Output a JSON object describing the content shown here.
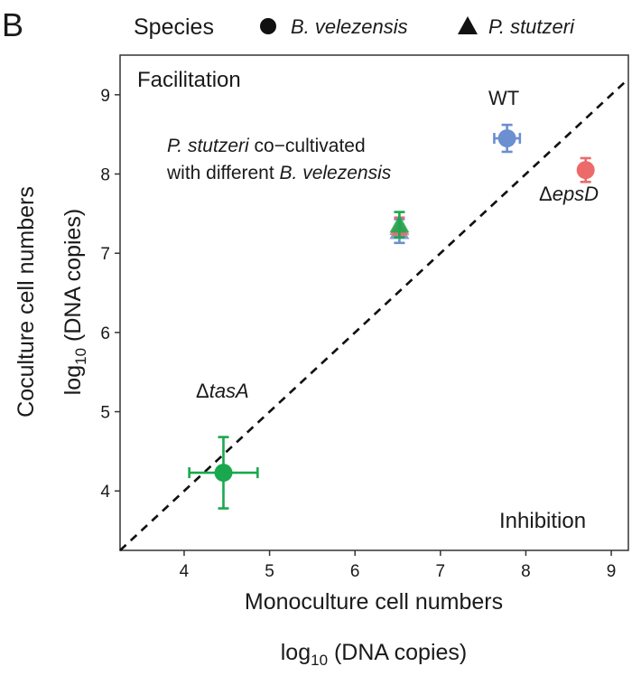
{
  "panel_label": "B",
  "legend": {
    "title": "Species",
    "entries": [
      {
        "label": "B. velezensis",
        "shape": "circle"
      },
      {
        "label": "P. stutzeri",
        "shape": "triangle"
      }
    ]
  },
  "chart_data": {
    "type": "scatter",
    "xlabel_line1": "Monoculture cell numbers",
    "xlabel_line2_prefix": "log",
    "xlabel_line2_sub": "10",
    "xlabel_line2_suffix": " (DNA copies)",
    "ylabel_line1": "Coculture cell numbers",
    "ylabel_line2_prefix": "log",
    "ylabel_line2_sub": "10",
    "ylabel_line2_suffix": " (DNA copies)",
    "xlim": [
      3.25,
      9.2
    ],
    "ylim": [
      3.25,
      9.5
    ],
    "xticks": [
      4,
      5,
      6,
      7,
      8,
      9
    ],
    "yticks": [
      4,
      5,
      6,
      7,
      8,
      9
    ],
    "grid": false,
    "reference_line": {
      "slope": 1,
      "intercept": 0,
      "style": "dashed"
    },
    "points": [
      {
        "label": "WT",
        "species": "B. velezensis",
        "shape": "circle",
        "color": "#6b8fd0",
        "x": 7.78,
        "y": 8.45,
        "xerr": 0.15,
        "yerr": 0.17
      },
      {
        "label": "ΔepsD",
        "species": "B. velezensis",
        "shape": "circle",
        "color": "#ec6a6a",
        "x": 8.7,
        "y": 8.05,
        "xerr": 0.07,
        "yerr": 0.15
      },
      {
        "label": "ΔtasA",
        "species": "B. velezensis",
        "shape": "circle",
        "color": "#1aa84e",
        "x": 4.46,
        "y": 4.23,
        "xerr": 0.4,
        "yerr": 0.45
      },
      {
        "label": "",
        "species": "P. stutzeri",
        "shape": "triangle",
        "color": "#6b8fd0",
        "x": 6.52,
        "y": 7.28,
        "xerr": 0,
        "yerr": 0.15
      },
      {
        "label": "",
        "species": "P. stutzeri",
        "shape": "triangle",
        "color": "#ec6a6a",
        "x": 6.52,
        "y": 7.33,
        "xerr": 0,
        "yerr": 0.12
      },
      {
        "label": "",
        "species": "P. stutzeri",
        "shape": "triangle",
        "color": "#1aa84e",
        "x": 6.52,
        "y": 7.36,
        "xerr": 0,
        "yerr": 0.16
      }
    ],
    "annotations": {
      "facilitation": "Facilitation",
      "inhibition": "Inhibition",
      "wt": "WT",
      "epsd_delta": "Δ",
      "epsd_name": "epsD",
      "tasa_delta": "Δ",
      "tasa_name": "tasA",
      "note_line1_italic": "P. stutzeri",
      "note_line1_rest": " co−cultivated",
      "note_line2_rest": "with different ",
      "note_line2_italic": "B. velezensis"
    }
  }
}
